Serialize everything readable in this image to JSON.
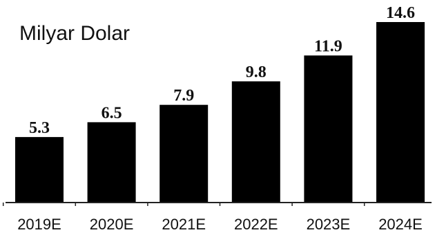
{
  "chart_data": {
    "type": "bar",
    "title": "",
    "unit_label": "Milyar Dolar",
    "xlabel": "",
    "ylabel": "",
    "categories": [
      "2019E",
      "2020E",
      "2021E",
      "2022E",
      "2023E",
      "2024E"
    ],
    "values": [
      5.3,
      6.5,
      7.9,
      9.8,
      11.9,
      14.6
    ],
    "data_labels": [
      "5.3",
      "6.5",
      "7.9",
      "9.8",
      "11.9",
      "14.6"
    ],
    "ylim": [
      0,
      14.6
    ],
    "grid": false,
    "legend": "none",
    "bar_color": "#000000"
  }
}
